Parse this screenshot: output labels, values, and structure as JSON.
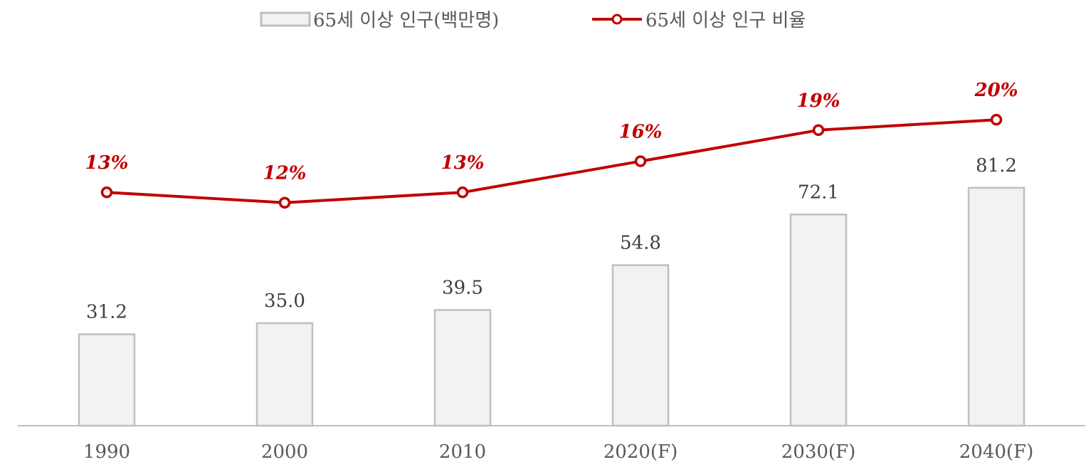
{
  "colors": {
    "bar_fill": "#f2f2f2",
    "bar_stroke": "#bfbfbf",
    "line": "#c00000",
    "point_fill": "#ffffff",
    "axis": "#bfbfbf"
  },
  "chart_data": {
    "type": "bar",
    "categories": [
      "1990",
      "2000",
      "2010",
      "2020(F)",
      "2030(F)",
      "2040(F)"
    ],
    "series": [
      {
        "name": "65세 이상 인구(백만명)",
        "type": "bar",
        "axis": "primary",
        "values": [
          31.2,
          35.0,
          39.5,
          54.8,
          72.1,
          81.2
        ],
        "labels": [
          "31.2",
          "35.0",
          "39.5",
          "54.8",
          "72.1",
          "81.2"
        ]
      },
      {
        "name": "65세 이상 인구 비율",
        "type": "line",
        "axis": "secondary",
        "values": [
          13,
          12,
          13,
          16,
          19,
          20
        ],
        "labels": [
          "13%",
          "12%",
          "13%",
          "16%",
          "19%",
          "20%"
        ]
      }
    ],
    "legend": "top-center",
    "grid": false,
    "ylim": [
      0,
      110
    ],
    "y2lim": [
      -9.5,
      26.5
    ]
  }
}
